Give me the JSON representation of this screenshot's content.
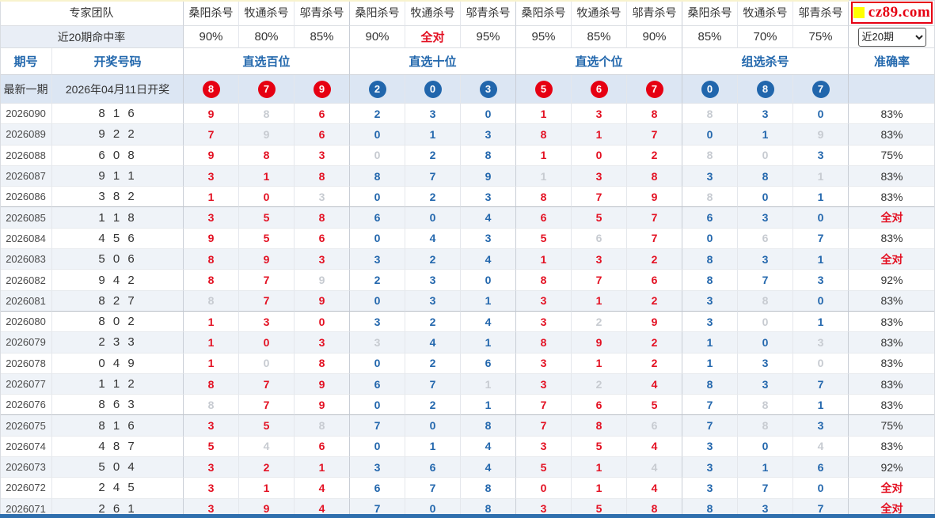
{
  "header": {
    "team_label": "专家团队",
    "hit_rate_label": "近20期命中率",
    "experts": [
      "桑阳杀号",
      "牧通杀号",
      "邬青杀号",
      "桑阳杀号",
      "牧通杀号",
      "邬青杀号",
      "桑阳杀号",
      "牧通杀号",
      "邬青杀号",
      "桑阳杀号",
      "牧通杀号",
      "邬青杀号"
    ],
    "hit_rates": [
      {
        "t": "90%",
        "hl": false
      },
      {
        "t": "80%",
        "hl": false
      },
      {
        "t": "85%",
        "hl": false
      },
      {
        "t": "90%",
        "hl": false
      },
      {
        "t": "全对",
        "hl": true
      },
      {
        "t": "95%",
        "hl": false
      },
      {
        "t": "95%",
        "hl": false
      },
      {
        "t": "85%",
        "hl": false
      },
      {
        "t": "90%",
        "hl": false
      },
      {
        "t": "85%",
        "hl": false
      },
      {
        "t": "70%",
        "hl": false
      },
      {
        "t": "75%",
        "hl": false
      }
    ],
    "period_label": "期号",
    "draw_label": "开奖号码",
    "groups": [
      "直选百位",
      "直选十位",
      "直选个位",
      "组选杀号"
    ],
    "accuracy_label": "准确率",
    "range_value": "近20期",
    "logo_text": "cz89.com"
  },
  "latest": {
    "label": "最新一期",
    "date": "2026年04月11日开奖",
    "balls": [
      "8r",
      "7r",
      "9r",
      "2b",
      "0b",
      "3b",
      "5r",
      "6r",
      "7r",
      "0b",
      "8b",
      "7b"
    ]
  },
  "color_codes": {
    "r": "red",
    "b": "blue",
    "g": "gray"
  },
  "rows": [
    {
      "period": "2026090",
      "draw": "8 1 6",
      "cells": [
        "9r",
        "8g",
        "6r",
        "2b",
        "3b",
        "0b",
        "1r",
        "3r",
        "8r",
        "8g",
        "3b",
        "0b"
      ],
      "acc": "83%",
      "acc_hl": false
    },
    {
      "period": "2026089",
      "draw": "9 2 2",
      "cells": [
        "7r",
        "9g",
        "6r",
        "0b",
        "1b",
        "3b",
        "8r",
        "1r",
        "7r",
        "0b",
        "1b",
        "9g"
      ],
      "acc": "83%",
      "acc_hl": false
    },
    {
      "period": "2026088",
      "draw": "6 0 8",
      "cells": [
        "9r",
        "8r",
        "3r",
        "0g",
        "2b",
        "8b",
        "1r",
        "0r",
        "2r",
        "8g",
        "0g",
        "3b"
      ],
      "acc": "75%",
      "acc_hl": false
    },
    {
      "period": "2026087",
      "draw": "9 1 1",
      "cells": [
        "3r",
        "1r",
        "8r",
        "8b",
        "7b",
        "9b",
        "1g",
        "3r",
        "8r",
        "3b",
        "8b",
        "1g"
      ],
      "acc": "83%",
      "acc_hl": false
    },
    {
      "period": "2026086",
      "draw": "3 8 2",
      "cells": [
        "1r",
        "0r",
        "3g",
        "0b",
        "2b",
        "3b",
        "8r",
        "7r",
        "9r",
        "8g",
        "0b",
        "1b"
      ],
      "acc": "83%",
      "acc_hl": false
    },
    {
      "period": "2026085",
      "draw": "1 1 8",
      "cells": [
        "3r",
        "5r",
        "8r",
        "6b",
        "0b",
        "4b",
        "6r",
        "5r",
        "7r",
        "6b",
        "3b",
        "0b"
      ],
      "acc": "全对",
      "acc_hl": true
    },
    {
      "period": "2026084",
      "draw": "4 5 6",
      "cells": [
        "9r",
        "5r",
        "6r",
        "0b",
        "4b",
        "3b",
        "5r",
        "6g",
        "7r",
        "0b",
        "6g",
        "7b"
      ],
      "acc": "83%",
      "acc_hl": false
    },
    {
      "period": "2026083",
      "draw": "5 0 6",
      "cells": [
        "8r",
        "9r",
        "3r",
        "3b",
        "2b",
        "4b",
        "1r",
        "3r",
        "2r",
        "8b",
        "3b",
        "1b"
      ],
      "acc": "全对",
      "acc_hl": true
    },
    {
      "period": "2026082",
      "draw": "9 4 2",
      "cells": [
        "8r",
        "7r",
        "9g",
        "2b",
        "3b",
        "0b",
        "8r",
        "7r",
        "6r",
        "8b",
        "7b",
        "3b"
      ],
      "acc": "92%",
      "acc_hl": false
    },
    {
      "period": "2026081",
      "draw": "8 2 7",
      "cells": [
        "8g",
        "7r",
        "9r",
        "0b",
        "3b",
        "1b",
        "3r",
        "1r",
        "2r",
        "3b",
        "8g",
        "0b"
      ],
      "acc": "83%",
      "acc_hl": false
    },
    {
      "period": "2026080",
      "draw": "8 0 2",
      "cells": [
        "1r",
        "3r",
        "0r",
        "3b",
        "2b",
        "4b",
        "3r",
        "2g",
        "9r",
        "3b",
        "0g",
        "1b"
      ],
      "acc": "83%",
      "acc_hl": false
    },
    {
      "period": "2026079",
      "draw": "2 3 3",
      "cells": [
        "1r",
        "0r",
        "3r",
        "3g",
        "4b",
        "1b",
        "8r",
        "9r",
        "2r",
        "1b",
        "0b",
        "3g"
      ],
      "acc": "83%",
      "acc_hl": false
    },
    {
      "period": "2026078",
      "draw": "0 4 9",
      "cells": [
        "1r",
        "0g",
        "8r",
        "0b",
        "2b",
        "6b",
        "3r",
        "1r",
        "2r",
        "1b",
        "3b",
        "0g"
      ],
      "acc": "83%",
      "acc_hl": false
    },
    {
      "period": "2026077",
      "draw": "1 1 2",
      "cells": [
        "8r",
        "7r",
        "9r",
        "6b",
        "7b",
        "1g",
        "3r",
        "2g",
        "4r",
        "8b",
        "3b",
        "7b"
      ],
      "acc": "83%",
      "acc_hl": false
    },
    {
      "period": "2026076",
      "draw": "8 6 3",
      "cells": [
        "8g",
        "7r",
        "9r",
        "0b",
        "2b",
        "1b",
        "7r",
        "6r",
        "5r",
        "7b",
        "8g",
        "1b"
      ],
      "acc": "83%",
      "acc_hl": false
    },
    {
      "period": "2026075",
      "draw": "8 1 6",
      "cells": [
        "3r",
        "5r",
        "8g",
        "7b",
        "0b",
        "8b",
        "7r",
        "8r",
        "6g",
        "7b",
        "8g",
        "3b"
      ],
      "acc": "75%",
      "acc_hl": false
    },
    {
      "period": "2026074",
      "draw": "4 8 7",
      "cells": [
        "5r",
        "4g",
        "6r",
        "0b",
        "1b",
        "4b",
        "3r",
        "5r",
        "4r",
        "3b",
        "0b",
        "4g"
      ],
      "acc": "83%",
      "acc_hl": false
    },
    {
      "period": "2026073",
      "draw": "5 0 4",
      "cells": [
        "3r",
        "2r",
        "1r",
        "3b",
        "6b",
        "4b",
        "5r",
        "1r",
        "4g",
        "3b",
        "1b",
        "6b"
      ],
      "acc": "92%",
      "acc_hl": false
    },
    {
      "period": "2026072",
      "draw": "2 4 5",
      "cells": [
        "3r",
        "1r",
        "4r",
        "6b",
        "7b",
        "8b",
        "0r",
        "1r",
        "4r",
        "3b",
        "7b",
        "0b"
      ],
      "acc": "全对",
      "acc_hl": true
    },
    {
      "period": "2026071",
      "draw": "2 6 1",
      "cells": [
        "3r",
        "9r",
        "4r",
        "7b",
        "0b",
        "8b",
        "3r",
        "5r",
        "8r",
        "8b",
        "3b",
        "7b"
      ],
      "acc": "全对",
      "acc_hl": true
    }
  ]
}
